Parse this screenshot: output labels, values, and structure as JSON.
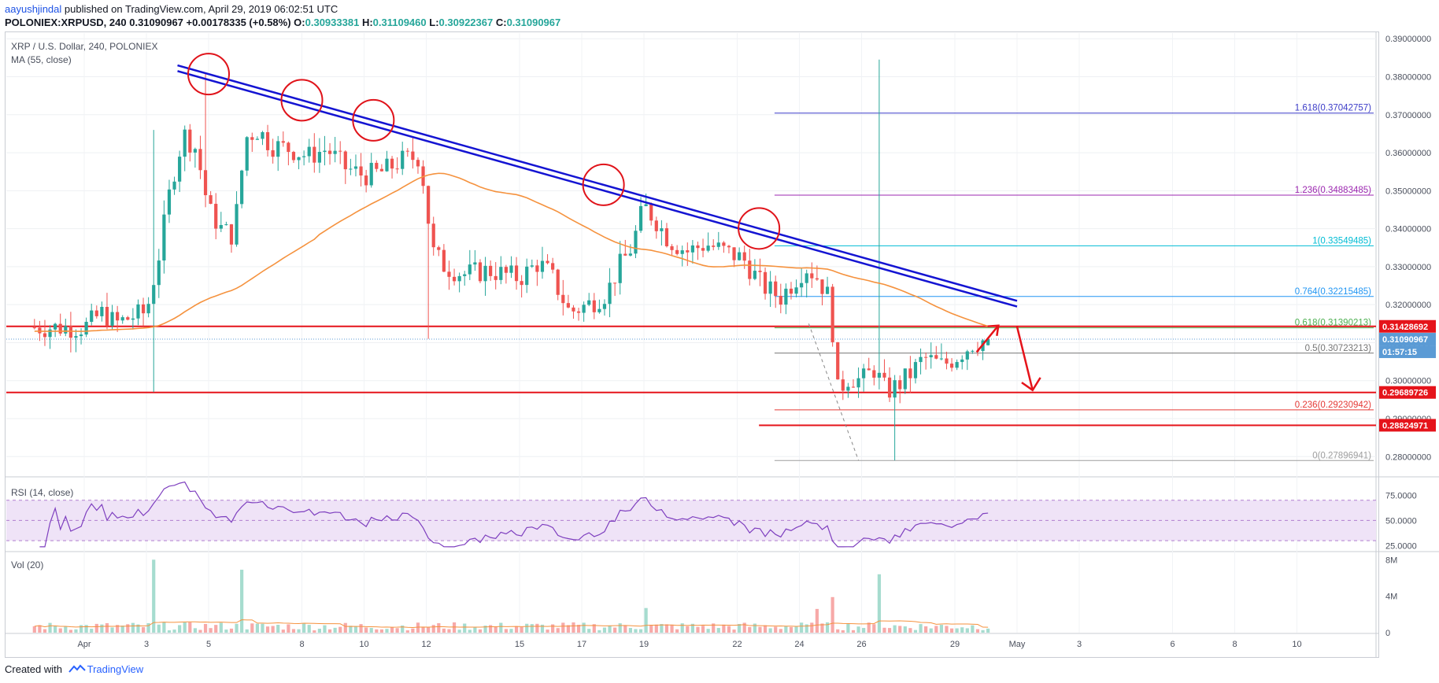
{
  "header": {
    "author": "aayushjindal",
    "published_text": " published on TradingView.com, April 29, 2019 06:02:51 UTC",
    "symbol": "POLONIEX:XRPUSD, 240",
    "last": "0.31090967",
    "change": "+0.00178335 (+0.58%)",
    "o_label": "O:",
    "o_value": "0.30933381",
    "h_label": "H:",
    "h_value": "0.31109460",
    "l_label": "L:",
    "l_value": "0.30922367",
    "c_label": "C:",
    "c_value": "0.31090967"
  },
  "price_pane": {
    "title": "XRP / U.S. Dollar, 240, POLONIEX",
    "indicator": "MA (55, close)"
  },
  "rsi_pane": {
    "title": "RSI (14, close)"
  },
  "vol_pane": {
    "title": "Vol (20)"
  },
  "footer": {
    "created_with": "Created with",
    "brand": "TradingView"
  },
  "colors": {
    "up": "#26a69a",
    "down": "#ef5350",
    "ma": "#f5923e",
    "trend": "#1414d2",
    "circle": "#e0131a",
    "support": "#e5131a",
    "rsi": "#7e3fbf",
    "fib_1618": "#3c3cc8",
    "fib_1236": "#9c27b0",
    "fib_1": "#00bcd4",
    "fib_0764": "#2196f3",
    "fib_0618": "#4caf50",
    "fib_05": "#757575",
    "fib_0236": "#e53935",
    "fib_0": "#9e9e9e"
  },
  "chart_data": [
    {
      "type": "candlestick",
      "symbol": "XRPUSD",
      "timeframe": "240",
      "x_ticks": [
        "Apr",
        "3",
        "5",
        "8",
        "10",
        "12",
        "15",
        "17",
        "19",
        "22",
        "24",
        "26",
        "29",
        "May",
        "3",
        "6",
        "8",
        "10"
      ],
      "y_ticks": [
        "0.28000000",
        "0.29000000",
        "0.30000000",
        "0.31000000",
        "0.32000000",
        "0.33000000",
        "0.34000000",
        "0.35000000",
        "0.36000000",
        "0.37000000",
        "0.38000000",
        "0.39000000"
      ],
      "ylim": [
        0.2755,
        0.3915
      ],
      "candles_summary": {
        "start_price": 0.314,
        "range_high": 0.381,
        "range_low": 0.279,
        "last_close": 0.31090967,
        "last_open": 0.30933381,
        "last_high": 0.3110946,
        "last_low": 0.30922367
      },
      "moving_average": {
        "name": "MA (55, close)",
        "start": 0.313,
        "peak": 0.355,
        "end": 0.314
      },
      "fibonacci_levels": [
        {
          "ratio": "1.618",
          "price": "0.37042757"
        },
        {
          "ratio": "1.236",
          "price": "0.34883485"
        },
        {
          "ratio": "1",
          "price": "0.33549485"
        },
        {
          "ratio": "0.764",
          "price": "0.32215485"
        },
        {
          "ratio": "0.618",
          "price": "0.31390213"
        },
        {
          "ratio": "0.5",
          "price": "0.30723213"
        },
        {
          "ratio": "0.236",
          "price": "0.29230942"
        },
        {
          "ratio": "0",
          "price": "0.27896941"
        }
      ],
      "horizontal_levels": [
        "0.31428692",
        "0.29689726",
        "0.28824971"
      ],
      "price_tags": [
        {
          "value": "0.31428692",
          "style": "red"
        },
        {
          "value": "0.31090967",
          "style": "blue"
        },
        {
          "value": "01:57:15",
          "style": "blue"
        },
        {
          "value": "0.29689726",
          "style": "red"
        },
        {
          "value": "0.28824971",
          "style": "red"
        }
      ],
      "trend_lines": [
        {
          "from": [
            "Apr 4",
            0.3815
          ],
          "to": [
            "May 1",
            0.3195
          ]
        },
        {
          "from": [
            "Apr 4",
            0.383
          ],
          "to": [
            "May 1",
            0.321
          ]
        }
      ],
      "highlighted_touches": 5
    },
    {
      "type": "line",
      "name": "RSI (14, close)",
      "y_ticks": [
        "25.0000",
        "50.0000",
        "75.0000"
      ],
      "ylim": [
        20,
        90
      ],
      "band": [
        30,
        70
      ],
      "start": 58,
      "peak": 88,
      "trough": 24,
      "end": 55
    },
    {
      "type": "bar",
      "name": "Vol (20)",
      "y_ticks": [
        "0",
        "4M",
        "8M"
      ],
      "ylim": [
        0,
        8.8
      ],
      "units": "M"
    }
  ]
}
